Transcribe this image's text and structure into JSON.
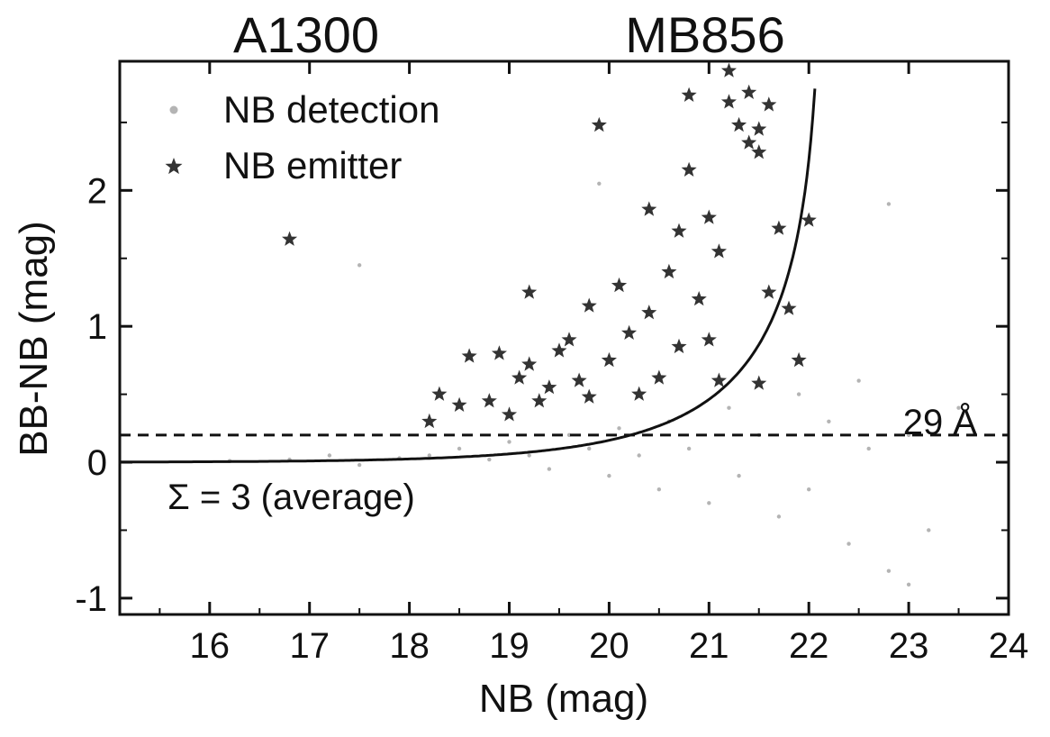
{
  "chart_data": {
    "type": "scatter",
    "title_left": "A1300",
    "title_right": "MB856",
    "xlabel": "NB (mag)",
    "ylabel": "BB-NB (mag)",
    "xlim": [
      15.1,
      24.0
    ],
    "ylim": [
      -1.12,
      2.95
    ],
    "x_ticks": [
      16,
      17,
      18,
      19,
      20,
      21,
      22,
      23,
      24
    ],
    "y_ticks": [
      -1,
      0,
      1,
      2
    ],
    "x_tick_labels": [
      "16",
      "17",
      "18",
      "19",
      "20",
      "21",
      "22",
      "23",
      "24"
    ],
    "y_tick_labels": [
      "-1",
      "0",
      "1",
      "2"
    ],
    "legend": [
      {
        "label": "NB detection",
        "marker": "dot",
        "color": "#b4b4b4"
      },
      {
        "label": "NB emitter",
        "marker": "star",
        "color": "#333333"
      }
    ],
    "legend_placement": "top-left",
    "threshold_line": {
      "y": 0.2,
      "style": "dashed",
      "label": "29 Å"
    },
    "sigma_curve": {
      "label": "Σ = 3 (average)",
      "sigma": 3
    },
    "series": [
      {
        "name": "NB detection",
        "marker": "dot",
        "color": "#b4b4b4",
        "distribution": "dense cloud of faint points centred near BB-NB = 0, scatter widening with NB, mostly between NB 18 and 23",
        "points": [
          [
            16.2,
            0.01
          ],
          [
            16.8,
            0.02
          ],
          [
            17.2,
            0.05
          ],
          [
            17.5,
            -0.02
          ],
          [
            17.9,
            0.03
          ],
          [
            18.2,
            0.05
          ],
          [
            18.5,
            0.1
          ],
          [
            18.8,
            0.02
          ],
          [
            19.0,
            0.15
          ],
          [
            19.2,
            0.05
          ],
          [
            19.4,
            -0.05
          ],
          [
            19.6,
            0.2
          ],
          [
            19.8,
            0.1
          ],
          [
            20.0,
            -0.1
          ],
          [
            20.1,
            0.25
          ],
          [
            20.3,
            0.05
          ],
          [
            20.5,
            -0.2
          ],
          [
            20.6,
            0.3
          ],
          [
            20.8,
            0.1
          ],
          [
            21.0,
            -0.3
          ],
          [
            21.2,
            0.4
          ],
          [
            21.3,
            -0.1
          ],
          [
            21.5,
            0.2
          ],
          [
            21.7,
            -0.4
          ],
          [
            21.9,
            0.5
          ],
          [
            22.0,
            -0.2
          ],
          [
            22.2,
            0.3
          ],
          [
            22.4,
            -0.6
          ],
          [
            22.6,
            0.1
          ],
          [
            22.8,
            -0.8
          ],
          [
            23.0,
            0.2
          ],
          [
            23.2,
            -0.5
          ],
          [
            23.5,
            0.4
          ],
          [
            17.5,
            1.45
          ],
          [
            19.9,
            2.05
          ],
          [
            22.8,
            1.9
          ],
          [
            23.0,
            -0.9
          ],
          [
            22.5,
            0.6
          ]
        ]
      },
      {
        "name": "NB emitter",
        "marker": "star",
        "color": "#333333",
        "points": [
          [
            16.8,
            1.64
          ],
          [
            18.2,
            0.3
          ],
          [
            18.3,
            0.5
          ],
          [
            18.5,
            0.42
          ],
          [
            18.6,
            0.78
          ],
          [
            18.8,
            0.45
          ],
          [
            18.9,
            0.8
          ],
          [
            19.0,
            0.35
          ],
          [
            19.1,
            0.62
          ],
          [
            19.2,
            1.25
          ],
          [
            19.2,
            0.72
          ],
          [
            19.3,
            0.45
          ],
          [
            19.4,
            0.55
          ],
          [
            19.5,
            0.82
          ],
          [
            19.6,
            0.9
          ],
          [
            19.7,
            0.6
          ],
          [
            19.8,
            1.15
          ],
          [
            19.8,
            0.48
          ],
          [
            19.9,
            2.48
          ],
          [
            20.0,
            0.75
          ],
          [
            20.1,
            1.3
          ],
          [
            20.2,
            0.95
          ],
          [
            20.3,
            0.5
          ],
          [
            20.4,
            1.86
          ],
          [
            20.4,
            1.1
          ],
          [
            20.5,
            0.62
          ],
          [
            20.6,
            1.4
          ],
          [
            20.7,
            0.85
          ],
          [
            20.7,
            1.7
          ],
          [
            20.8,
            2.15
          ],
          [
            20.8,
            2.7
          ],
          [
            20.9,
            1.2
          ],
          [
            21.0,
            0.9
          ],
          [
            21.0,
            1.8
          ],
          [
            21.1,
            1.55
          ],
          [
            21.2,
            2.88
          ],
          [
            21.2,
            2.65
          ],
          [
            21.3,
            2.48
          ],
          [
            21.4,
            2.72
          ],
          [
            21.4,
            2.35
          ],
          [
            21.5,
            2.45
          ],
          [
            21.5,
            2.28
          ],
          [
            21.6,
            2.63
          ],
          [
            21.6,
            1.25
          ],
          [
            21.7,
            1.72
          ],
          [
            21.8,
            1.13
          ],
          [
            22.0,
            1.78
          ],
          [
            21.9,
            0.75
          ],
          [
            21.5,
            0.58
          ],
          [
            21.1,
            0.6
          ]
        ]
      }
    ]
  }
}
